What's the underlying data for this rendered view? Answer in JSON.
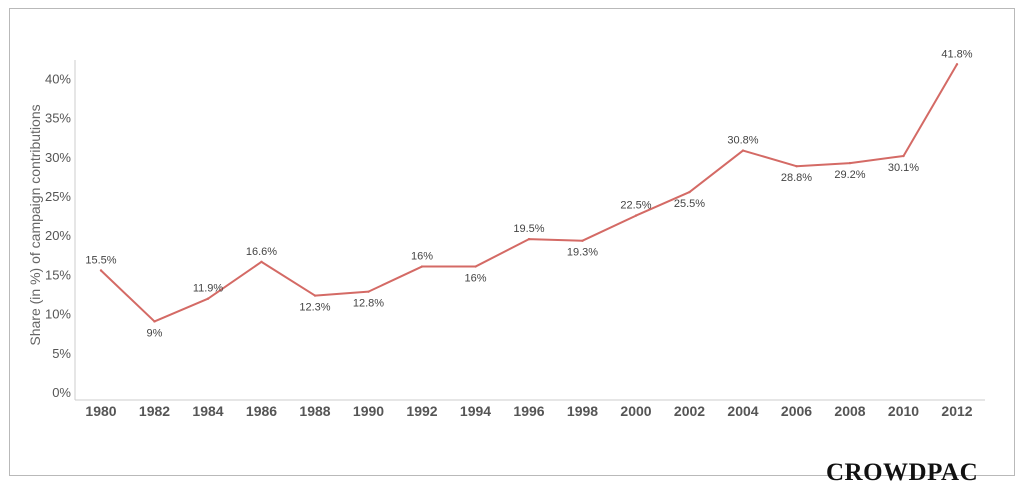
{
  "brand": {
    "logo_text": "CROWDPAC"
  },
  "colors": {
    "line": "#d46a65",
    "axis": "#cccccc"
  },
  "chart_data": {
    "type": "line",
    "ylabel": "Share (in %) of campaign contributions",
    "ylim": [
      0,
      42.5
    ],
    "y_ticks": [
      0,
      5,
      10,
      15,
      20,
      25,
      30,
      35,
      40
    ],
    "y_tick_labels": [
      "0%",
      "5%",
      "10%",
      "15%",
      "20%",
      "25%",
      "30%",
      "35%",
      "40%"
    ],
    "x": [
      "1980",
      "1982",
      "1984",
      "1986",
      "1988",
      "1990",
      "1992",
      "1994",
      "1996",
      "1998",
      "2000",
      "2002",
      "2004",
      "2006",
      "2008",
      "2010",
      "2012"
    ],
    "values": [
      15.5,
      9,
      11.9,
      16.6,
      12.3,
      12.8,
      16,
      16,
      19.5,
      19.3,
      22.5,
      25.5,
      30.8,
      28.8,
      29.2,
      30.1,
      41.8
    ],
    "labels": [
      "15.5%",
      "9%",
      "11.9%",
      "16.6%",
      "12.3%",
      "12.8%",
      "16%",
      "16%",
      "19.5%",
      "19.3%",
      "22.5%",
      "25.5%",
      "30.8%",
      "28.8%",
      "29.2%",
      "30.1%",
      "41.8%"
    ],
    "grid": false
  }
}
